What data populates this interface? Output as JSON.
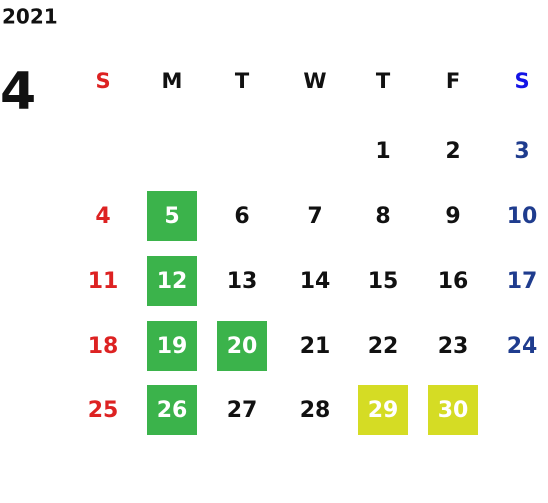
{
  "year": "2021",
  "month": "4",
  "weekdays": [
    "S",
    "M",
    "T",
    "W",
    "T",
    "F",
    "S"
  ],
  "weeks": [
    [
      null,
      null,
      null,
      null,
      1,
      2,
      3
    ],
    [
      4,
      {
        "day": 5,
        "fill": "#3bb34b"
      },
      6,
      7,
      8,
      9,
      10
    ],
    [
      11,
      {
        "day": 12,
        "fill": "#3bb34b"
      },
      13,
      14,
      15,
      16,
      17
    ],
    [
      18,
      {
        "day": 19,
        "fill": "#3bb34b"
      },
      {
        "day": 20,
        "fill": "#3bb34b"
      },
      21,
      22,
      23,
      24
    ],
    [
      25,
      {
        "day": 26,
        "fill": "#3bb34b"
      },
      27,
      28,
      {
        "day": 29,
        "fill": "#d5dc24"
      },
      {
        "day": 30,
        "fill": "#d5dc24"
      },
      null
    ]
  ],
  "colors": {
    "sunday": "#dd2222",
    "saturday_header": "#1414e6",
    "saturday": "#1f3c8e",
    "weekday": "#111111",
    "highlight_text": "#ffffff"
  }
}
